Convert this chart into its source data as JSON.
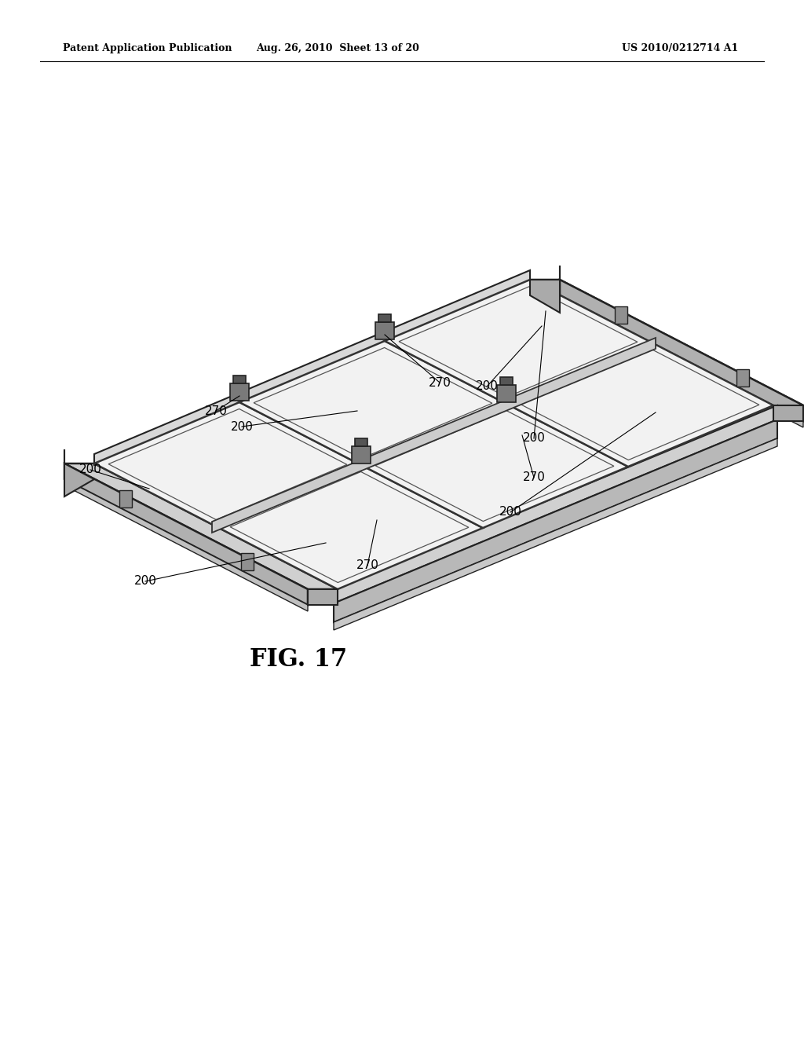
{
  "header_left": "Patent Application Publication",
  "header_mid": "Aug. 26, 2010  Sheet 13 of 20",
  "header_right": "US 2010/0212714 A1",
  "fig_label": "FIG. 17",
  "background_color": "#ffffff",
  "line_color": "#000000"
}
